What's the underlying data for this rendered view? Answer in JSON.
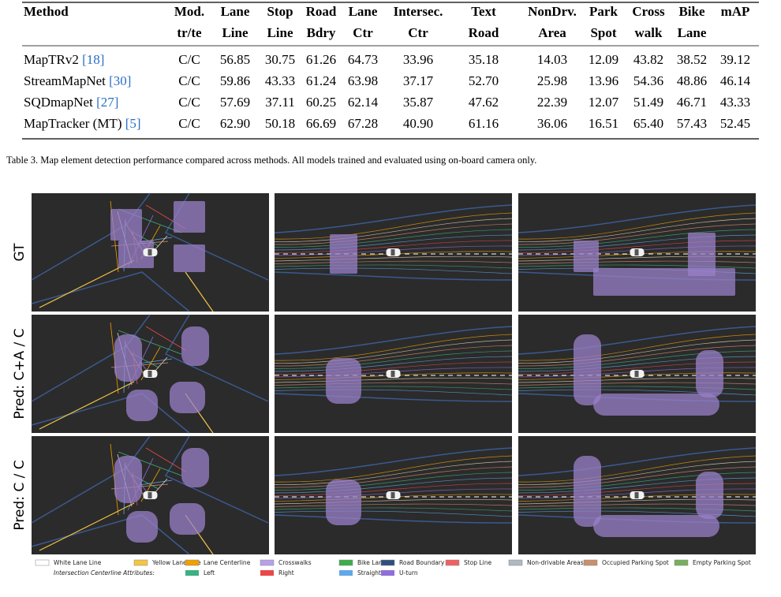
{
  "table": {
    "headers": [
      [
        "Method",
        "Mod.",
        "Lane",
        "Stop",
        "Road",
        "Lane",
        "Intersec.",
        "Text",
        "NonDrv.",
        "Park",
        "Cross",
        "Bike",
        "mAP"
      ],
      [
        "",
        "tr/te",
        "Line",
        "Line",
        "Bdry",
        "Ctr",
        "Ctr",
        "Road",
        "Area",
        "Spot",
        "walk",
        "Lane",
        ""
      ]
    ],
    "rows": [
      {
        "method": "MapTRv2",
        "ref": "[18]",
        "cells": [
          "C/C",
          "56.85",
          "30.75",
          "61.26",
          "64.73",
          "33.96",
          "35.18",
          "14.03",
          "12.09",
          "43.82",
          "38.52",
          "39.12"
        ]
      },
      {
        "method": "StreamMapNet",
        "ref": "[30]",
        "cells": [
          "C/C",
          "59.86",
          "43.33",
          "61.24",
          "63.98",
          "37.17",
          "52.70",
          "25.98",
          "13.96",
          "54.36",
          "48.86",
          "46.14"
        ]
      },
      {
        "method": "SQDmapNet",
        "ref": "[27]",
        "cells": [
          "C/C",
          "57.69",
          "37.11",
          "60.25",
          "62.14",
          "35.87",
          "47.62",
          "22.39",
          "12.07",
          "51.49",
          "46.71",
          "43.33"
        ]
      },
      {
        "method": "MapTracker (MT)",
        "ref": "[5]",
        "cells": [
          "C/C",
          "62.90",
          "50.18",
          "66.69",
          "67.28",
          "40.90",
          "61.16",
          "36.06",
          "16.51",
          "65.40",
          "57.43",
          "52.45"
        ]
      }
    ],
    "caption": "Table 3. Map element detection performance compared across methods. All models trained and evaluated using on-board camera only."
  },
  "figure": {
    "row_labels": [
      "GT",
      "Pred: C+A / C",
      "Pred: C / C"
    ],
    "legend": {
      "items": [
        {
          "label": "White Lane Line",
          "color": "#ffffff"
        },
        {
          "label": "Yellow Lane Line",
          "color": "#f4c542"
        },
        {
          "label": "Lane Centerline",
          "color": "#f0a000"
        },
        {
          "label": "Crosswalks",
          "color": "#b8a0e8"
        },
        {
          "label": "Bike Lanes",
          "color": "#3cae4a"
        },
        {
          "label": "Road Boundary",
          "color": "#2f4f7f"
        },
        {
          "label": "Stop Line",
          "color": "#f06060"
        },
        {
          "label": "Non-drivable Areas",
          "color": "#b0b8c0"
        },
        {
          "label": "Occupied Parking Spot",
          "color": "#c8906a"
        },
        {
          "label": "Empty Parking Spot",
          "color": "#78b060"
        }
      ],
      "attributes_title": "Intersection Centerline Attributes:",
      "attributes": [
        {
          "label": "Left",
          "color": "#3cb080"
        },
        {
          "label": "Right",
          "color": "#e84848"
        },
        {
          "label": "Straight",
          "color": "#60a8e8"
        },
        {
          "label": "U-turn",
          "color": "#9070d8"
        }
      ]
    }
  }
}
